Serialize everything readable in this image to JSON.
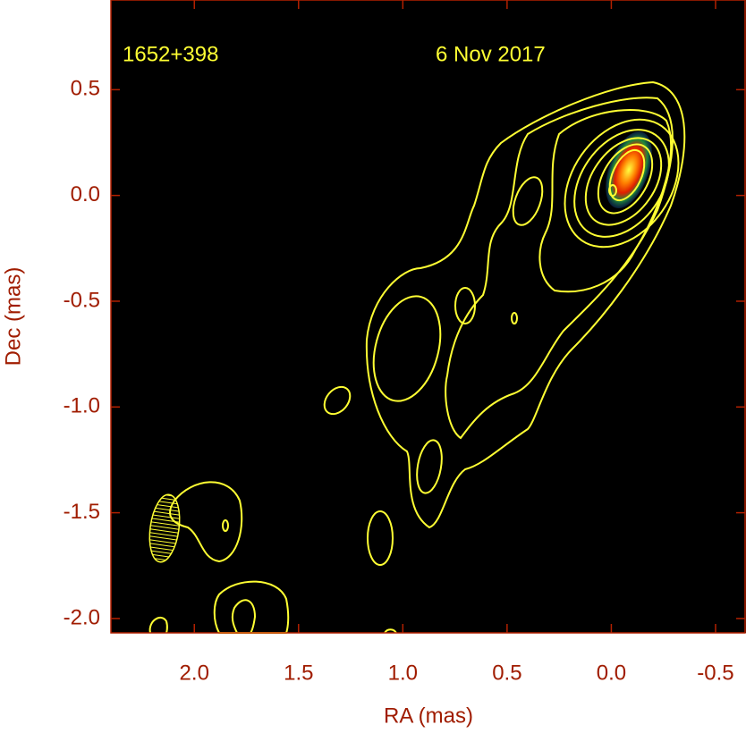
{
  "chart_data": {
    "type": "image",
    "annotations": [
      "1652+398",
      "6 Nov 2017"
    ],
    "xlabel": "RA (mas)",
    "ylabel": "Dec (mas)",
    "xlim": [
      2.4,
      -0.646
    ],
    "ylim": [
      -2.068,
      0.924
    ],
    "xticks": [
      {
        "value": 2,
        "label": "2.0"
      },
      1.5,
      {
        "value": 1,
        "label": "1.0"
      },
      0.5,
      {
        "value": 0,
        "label": "0.0"
      },
      -0.5
    ],
    "yticks": [
      0.5,
      {
        "value": 0,
        "label": "0.0"
      },
      -0.5,
      {
        "value": -1,
        "label": "-1.0"
      },
      -1.5,
      {
        "value": -2,
        "label": "-2.0"
      }
    ],
    "contour_color": "#ffff33"
  }
}
